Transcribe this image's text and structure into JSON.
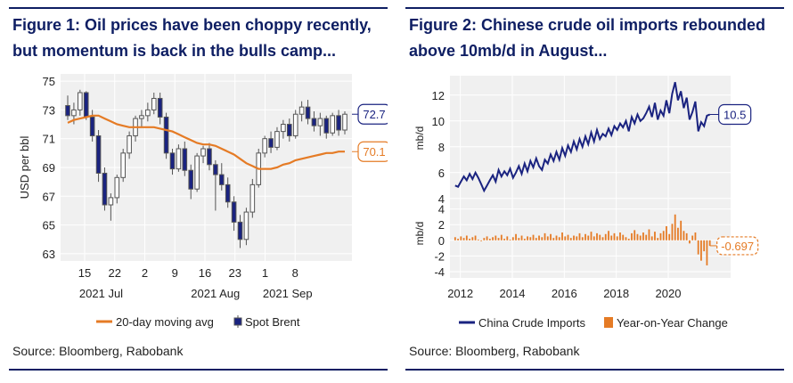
{
  "colors": {
    "title": "#0e1e63",
    "navy": "#1a2380",
    "orange": "#e57b25",
    "candle_outline": "#555555",
    "candle_down": "#1a2380",
    "candle_up": "#ffffff",
    "plot_bg": "#f0f0f0",
    "grid": "#ffffff"
  },
  "left_panel": {
    "title_line1": "Figure 1: Oil prices have been choppy recently,",
    "title_line2": "but momentum is back in the bulls camp...",
    "source": "Source: Bloomberg, Rabobank"
  },
  "right_panel": {
    "title_line1": "Figure 2: Chinese crude oil imports rebounded",
    "title_line2": "above 10mb/d in August...",
    "source": "Source: Bloomberg, Rabobank"
  },
  "chart_data": [
    {
      "type": "candlestick",
      "title": "Figure 1: Oil prices have been choppy recently, but momentum is back in the bulls camp...",
      "ylabel": "USD per bbl",
      "ylim": [
        62.5,
        75.5
      ],
      "yticks": [
        63,
        65,
        67,
        69,
        71,
        73,
        75
      ],
      "xlim": [
        -3.5,
        29.5
      ],
      "xticks": [
        {
          "pos": 0,
          "label": "15"
        },
        {
          "pos": 5,
          "label": "22"
        },
        {
          "pos": 10,
          "label": "2"
        },
        {
          "pos": 15,
          "label": "9"
        },
        {
          "pos": 20,
          "label": "16"
        },
        {
          "pos": 25,
          "label": "23"
        },
        {
          "pos": 30,
          "label": "1"
        },
        {
          "pos": 35,
          "label": "8"
        }
      ],
      "month_labels": [
        {
          "pos": 2,
          "label": "2021 Jul"
        },
        {
          "pos": 21,
          "label": "2021 Aug"
        },
        {
          "pos": 33,
          "label": "2021 Sep"
        }
      ],
      "series": [
        {
          "name": "Spot Brent",
          "ohlc": [
            [
              73.3,
              74.0,
              72.3,
              72.6
            ],
            [
              72.6,
              73.5,
              72.0,
              73.0
            ],
            [
              73.0,
              74.4,
              72.6,
              74.2
            ],
            [
              74.2,
              74.3,
              72.3,
              72.5
            ],
            [
              72.5,
              73.0,
              70.8,
              71.2
            ],
            [
              71.2,
              71.6,
              68.0,
              68.6
            ],
            [
              68.6,
              69.0,
              66.0,
              66.4
            ],
            [
              66.4,
              67.2,
              65.3,
              66.9
            ],
            [
              66.9,
              68.5,
              66.5,
              68.3
            ],
            [
              68.3,
              70.3,
              68.0,
              70.0
            ],
            [
              70.0,
              71.5,
              69.6,
              71.2
            ],
            [
              71.2,
              72.6,
              70.8,
              72.4
            ],
            [
              72.4,
              73.0,
              71.8,
              72.6
            ],
            [
              72.6,
              73.5,
              72.2,
              73.0
            ],
            [
              73.0,
              74.2,
              72.7,
              73.8
            ],
            [
              73.8,
              74.2,
              72.0,
              72.5
            ],
            [
              72.5,
              72.8,
              69.6,
              70.0
            ],
            [
              70.0,
              70.3,
              68.5,
              68.9
            ],
            [
              68.9,
              70.6,
              68.7,
              70.3
            ],
            [
              70.3,
              70.8,
              68.4,
              68.8
            ],
            [
              68.8,
              69.2,
              66.8,
              67.5
            ],
            [
              67.5,
              70.0,
              67.3,
              69.8
            ],
            [
              69.8,
              70.5,
              69.3,
              70.3
            ],
            [
              70.3,
              70.7,
              68.8,
              69.2
            ],
            [
              69.2,
              69.5,
              66.0,
              68.5
            ],
            [
              68.5,
              69.3,
              67.4,
              67.8
            ],
            [
              67.8,
              68.3,
              66.2,
              66.6
            ],
            [
              66.6,
              67.0,
              64.6,
              65.2
            ],
            [
              65.2,
              65.7,
              63.4,
              64.0
            ],
            [
              64.0,
              66.2,
              63.6,
              65.9
            ],
            [
              65.9,
              68.2,
              65.5,
              67.8
            ],
            [
              67.8,
              70.3,
              67.6,
              70.0
            ],
            [
              70.0,
              71.2,
              69.7,
              71.0
            ],
            [
              71.0,
              71.5,
              70.0,
              70.4
            ],
            [
              70.4,
              71.8,
              70.2,
              71.5
            ],
            [
              71.5,
              72.3,
              71.0,
              72.0
            ],
            [
              72.0,
              72.4,
              70.8,
              71.2
            ],
            [
              71.2,
              73.0,
              71.0,
              72.7
            ],
            [
              72.7,
              73.6,
              72.2,
              73.2
            ],
            [
              73.2,
              73.7,
              72.0,
              72.4
            ],
            [
              72.4,
              72.9,
              71.5,
              71.9
            ],
            [
              71.9,
              72.8,
              71.2,
              72.4
            ],
            [
              72.4,
              72.6,
              71.0,
              71.4
            ],
            [
              71.4,
              72.8,
              71.2,
              72.6
            ],
            [
              72.6,
              73.0,
              71.2,
              71.6
            ],
            [
              71.6,
              72.9,
              71.3,
              72.7
            ]
          ]
        },
        {
          "name": "20-day moving avg",
          "values": [
            72.1,
            72.3,
            72.4,
            72.5,
            72.6,
            72.6,
            72.4,
            72.2,
            72.0,
            71.9,
            71.8,
            71.8,
            71.8,
            71.8,
            71.8,
            71.7,
            71.6,
            71.5,
            71.3,
            71.1,
            70.9,
            70.7,
            70.6,
            70.6,
            70.5,
            70.3,
            70.1,
            69.9,
            69.6,
            69.3,
            69.1,
            68.9,
            68.9,
            68.9,
            69.0,
            69.2,
            69.3,
            69.5,
            69.6,
            69.7,
            69.8,
            69.9,
            70.0,
            70.0,
            70.1,
            70.1
          ]
        }
      ],
      "end_labels": {
        "spot": "72.7",
        "ma": "70.1"
      },
      "legend": {
        "ma_label": "20-day moving avg",
        "spot_label": "Spot Brent",
        "placement": "bottom"
      }
    },
    {
      "type": "line",
      "title": "Figure 2: Chinese crude oil imports rebounded above 10mb/d in August...",
      "xlim": [
        2011.6,
        2022.4
      ],
      "xticks": [
        2012,
        2014,
        2016,
        2018,
        2020
      ],
      "top": {
        "ylabel": "mb/d",
        "ylim": [
          3.5,
          13.5
        ],
        "yticks": [
          4,
          6,
          8,
          10,
          12
        ],
        "series": [
          {
            "name": "China Crude Imports",
            "values": [
              5.0,
              4.9,
              5.3,
              5.7,
              5.4,
              5.9,
              5.5,
              6.0,
              5.6,
              5.1,
              4.6,
              5.0,
              5.4,
              5.8,
              5.3,
              6.2,
              5.7,
              6.1,
              5.8,
              6.3,
              5.6,
              6.0,
              6.5,
              5.9,
              6.7,
              6.1,
              6.9,
              6.4,
              7.1,
              6.5,
              6.2,
              7.0,
              6.7,
              7.4,
              6.9,
              7.6,
              7.0,
              7.9,
              7.3,
              8.1,
              7.6,
              8.4,
              7.8,
              8.6,
              8.0,
              8.8,
              8.2,
              9.1,
              8.4,
              9.3,
              8.6,
              9.0,
              8.8,
              9.4,
              8.9,
              9.6,
              9.3,
              9.8,
              9.5,
              10.0,
              9.2,
              10.3,
              9.8,
              10.5,
              10.0,
              10.2,
              10.6,
              11.1,
              10.3,
              11.4,
              10.1,
              10.8,
              10.4,
              11.6,
              10.6,
              12.1,
              13.0,
              11.6,
              12.3,
              11.0,
              11.8,
              10.1,
              10.7,
              11.5,
              9.2,
              9.9,
              9.6,
              10.4,
              10.5
            ],
            "end_label": "10.5"
          }
        ]
      },
      "bottom": {
        "ylabel": "mb/d",
        "ylim": [
          -4.8,
          4.3
        ],
        "yticks": [
          -4,
          -2,
          0,
          2,
          4
        ],
        "series": [
          {
            "name": "Year-on-Year Change",
            "values": [
              0.4,
              0.2,
              0.5,
              0.3,
              0.6,
              0.2,
              0.4,
              0.6,
              0.1,
              -0.1,
              0.3,
              0.5,
              0.2,
              0.4,
              0.6,
              0.3,
              0.7,
              0.2,
              0.5,
              0.1,
              0.4,
              0.8,
              0.3,
              0.6,
              0.2,
              0.5,
              0.4,
              0.7,
              0.3,
              0.6,
              0.4,
              0.9,
              0.5,
              0.8,
              0.3,
              0.6,
              0.4,
              1.0,
              0.5,
              0.7,
              0.3,
              0.6,
              0.5,
              0.9,
              0.4,
              0.8,
              0.6,
              1.1,
              0.5,
              0.9,
              0.7,
              0.4,
              0.8,
              1.2,
              0.6,
              0.9,
              0.5,
              1.0,
              0.7,
              0.4,
              0.2,
              0.9,
              1.3,
              0.8,
              0.6,
              1.0,
              0.7,
              1.4,
              0.5,
              1.1,
              0.3,
              0.9,
              1.2,
              1.8,
              0.8,
              2.1,
              3.3,
              1.6,
              2.5,
              1.2,
              0.9,
              -0.4,
              0.6,
              1.0,
              -1.8,
              -2.6,
              -1.4,
              -3.2,
              -0.7
            ],
            "end_label": "-0.697"
          }
        ]
      },
      "legend": {
        "line_label": "China Crude Imports",
        "bar_label": "Year-on-Year Change",
        "placement": "bottom"
      }
    }
  ]
}
